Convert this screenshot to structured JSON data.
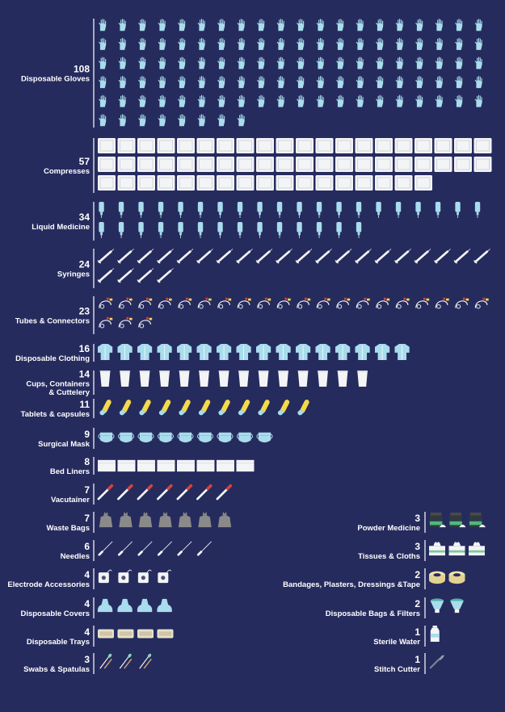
{
  "chart_data": {
    "type": "pictogram",
    "title": "",
    "xlabel": "",
    "ylabel": "",
    "colors": {
      "background": "#262b5e",
      "text": "#ffffff",
      "light_blue": "#a9dcec",
      "white": "#f3f4f6",
      "grey": "#8a8a8a",
      "yellow": "#f4d94a",
      "red": "#d9423a"
    },
    "categories": [
      {
        "label": "Disposable Gloves",
        "count": "108",
        "value": 108,
        "icon": "glove-icon",
        "column": "left"
      },
      {
        "label": "Compresses",
        "count": "57",
        "value": 57,
        "icon": "compress-icon",
        "column": "left"
      },
      {
        "label": "Liquid Medicine",
        "count": "34",
        "value": 34,
        "icon": "iv-bag-icon",
        "column": "left"
      },
      {
        "label": "Syringes",
        "count": "24",
        "value": 24,
        "icon": "syringe-icon",
        "column": "left"
      },
      {
        "label": "Tubes & Connectors",
        "count": "23",
        "value": 23,
        "icon": "tube-icon",
        "column": "left"
      },
      {
        "label": "Disposable Clothing",
        "count": "16",
        "value": 16,
        "icon": "gown-icon",
        "column": "left"
      },
      {
        "label": "Cups, Containers\n& Cuttelery",
        "count": "14",
        "value": 14,
        "icon": "cup-icon",
        "column": "left"
      },
      {
        "label": "Tablets & capsules",
        "count": "11",
        "value": 11,
        "icon": "capsule-icon",
        "column": "left"
      },
      {
        "label": "Surgical Mask",
        "count": "9",
        "value": 9,
        "icon": "mask-icon",
        "column": "left"
      },
      {
        "label": "Bed Liners",
        "count": "8",
        "value": 8,
        "icon": "bed-liner-icon",
        "column": "left"
      },
      {
        "label": "Vacutainer",
        "count": "7",
        "value": 7,
        "icon": "vacutainer-icon",
        "column": "left"
      },
      {
        "label": "Waste Bags",
        "count": "7",
        "value": 7,
        "icon": "waste-bag-icon",
        "column": "left"
      },
      {
        "label": "Needles",
        "count": "6",
        "value": 6,
        "icon": "needle-icon",
        "column": "left"
      },
      {
        "label": "Electrode Accessories",
        "count": "4",
        "value": 4,
        "icon": "electrode-icon",
        "column": "left"
      },
      {
        "label": "Disposable Covers",
        "count": "4",
        "value": 4,
        "icon": "cover-icon",
        "column": "left"
      },
      {
        "label": "Disposable Trays",
        "count": "4",
        "value": 4,
        "icon": "tray-icon",
        "column": "left"
      },
      {
        "label": "Swabs & Spatulas",
        "count": "3",
        "value": 3,
        "icon": "swab-icon",
        "column": "left"
      },
      {
        "label": "Powder Medicine",
        "count": "3",
        "value": 3,
        "icon": "powder-jar-icon",
        "column": "right"
      },
      {
        "label": "Tissues & Cloths",
        "count": "3",
        "value": 3,
        "icon": "tissue-box-icon",
        "column": "right"
      },
      {
        "label": "Bandages, Plasters, Dressings &Tape",
        "count": "2",
        "value": 2,
        "icon": "tape-roll-icon",
        "column": "right"
      },
      {
        "label": "Disposable Bags & Filters",
        "count": "2",
        "value": 2,
        "icon": "filter-icon",
        "column": "right"
      },
      {
        "label": "Sterile Water",
        "count": "1",
        "value": 1,
        "icon": "water-bottle-icon",
        "column": "right"
      },
      {
        "label": "Stitch Cutter",
        "count": "1",
        "value": 1,
        "icon": "stitch-cutter-icon",
        "column": "right"
      }
    ]
  }
}
